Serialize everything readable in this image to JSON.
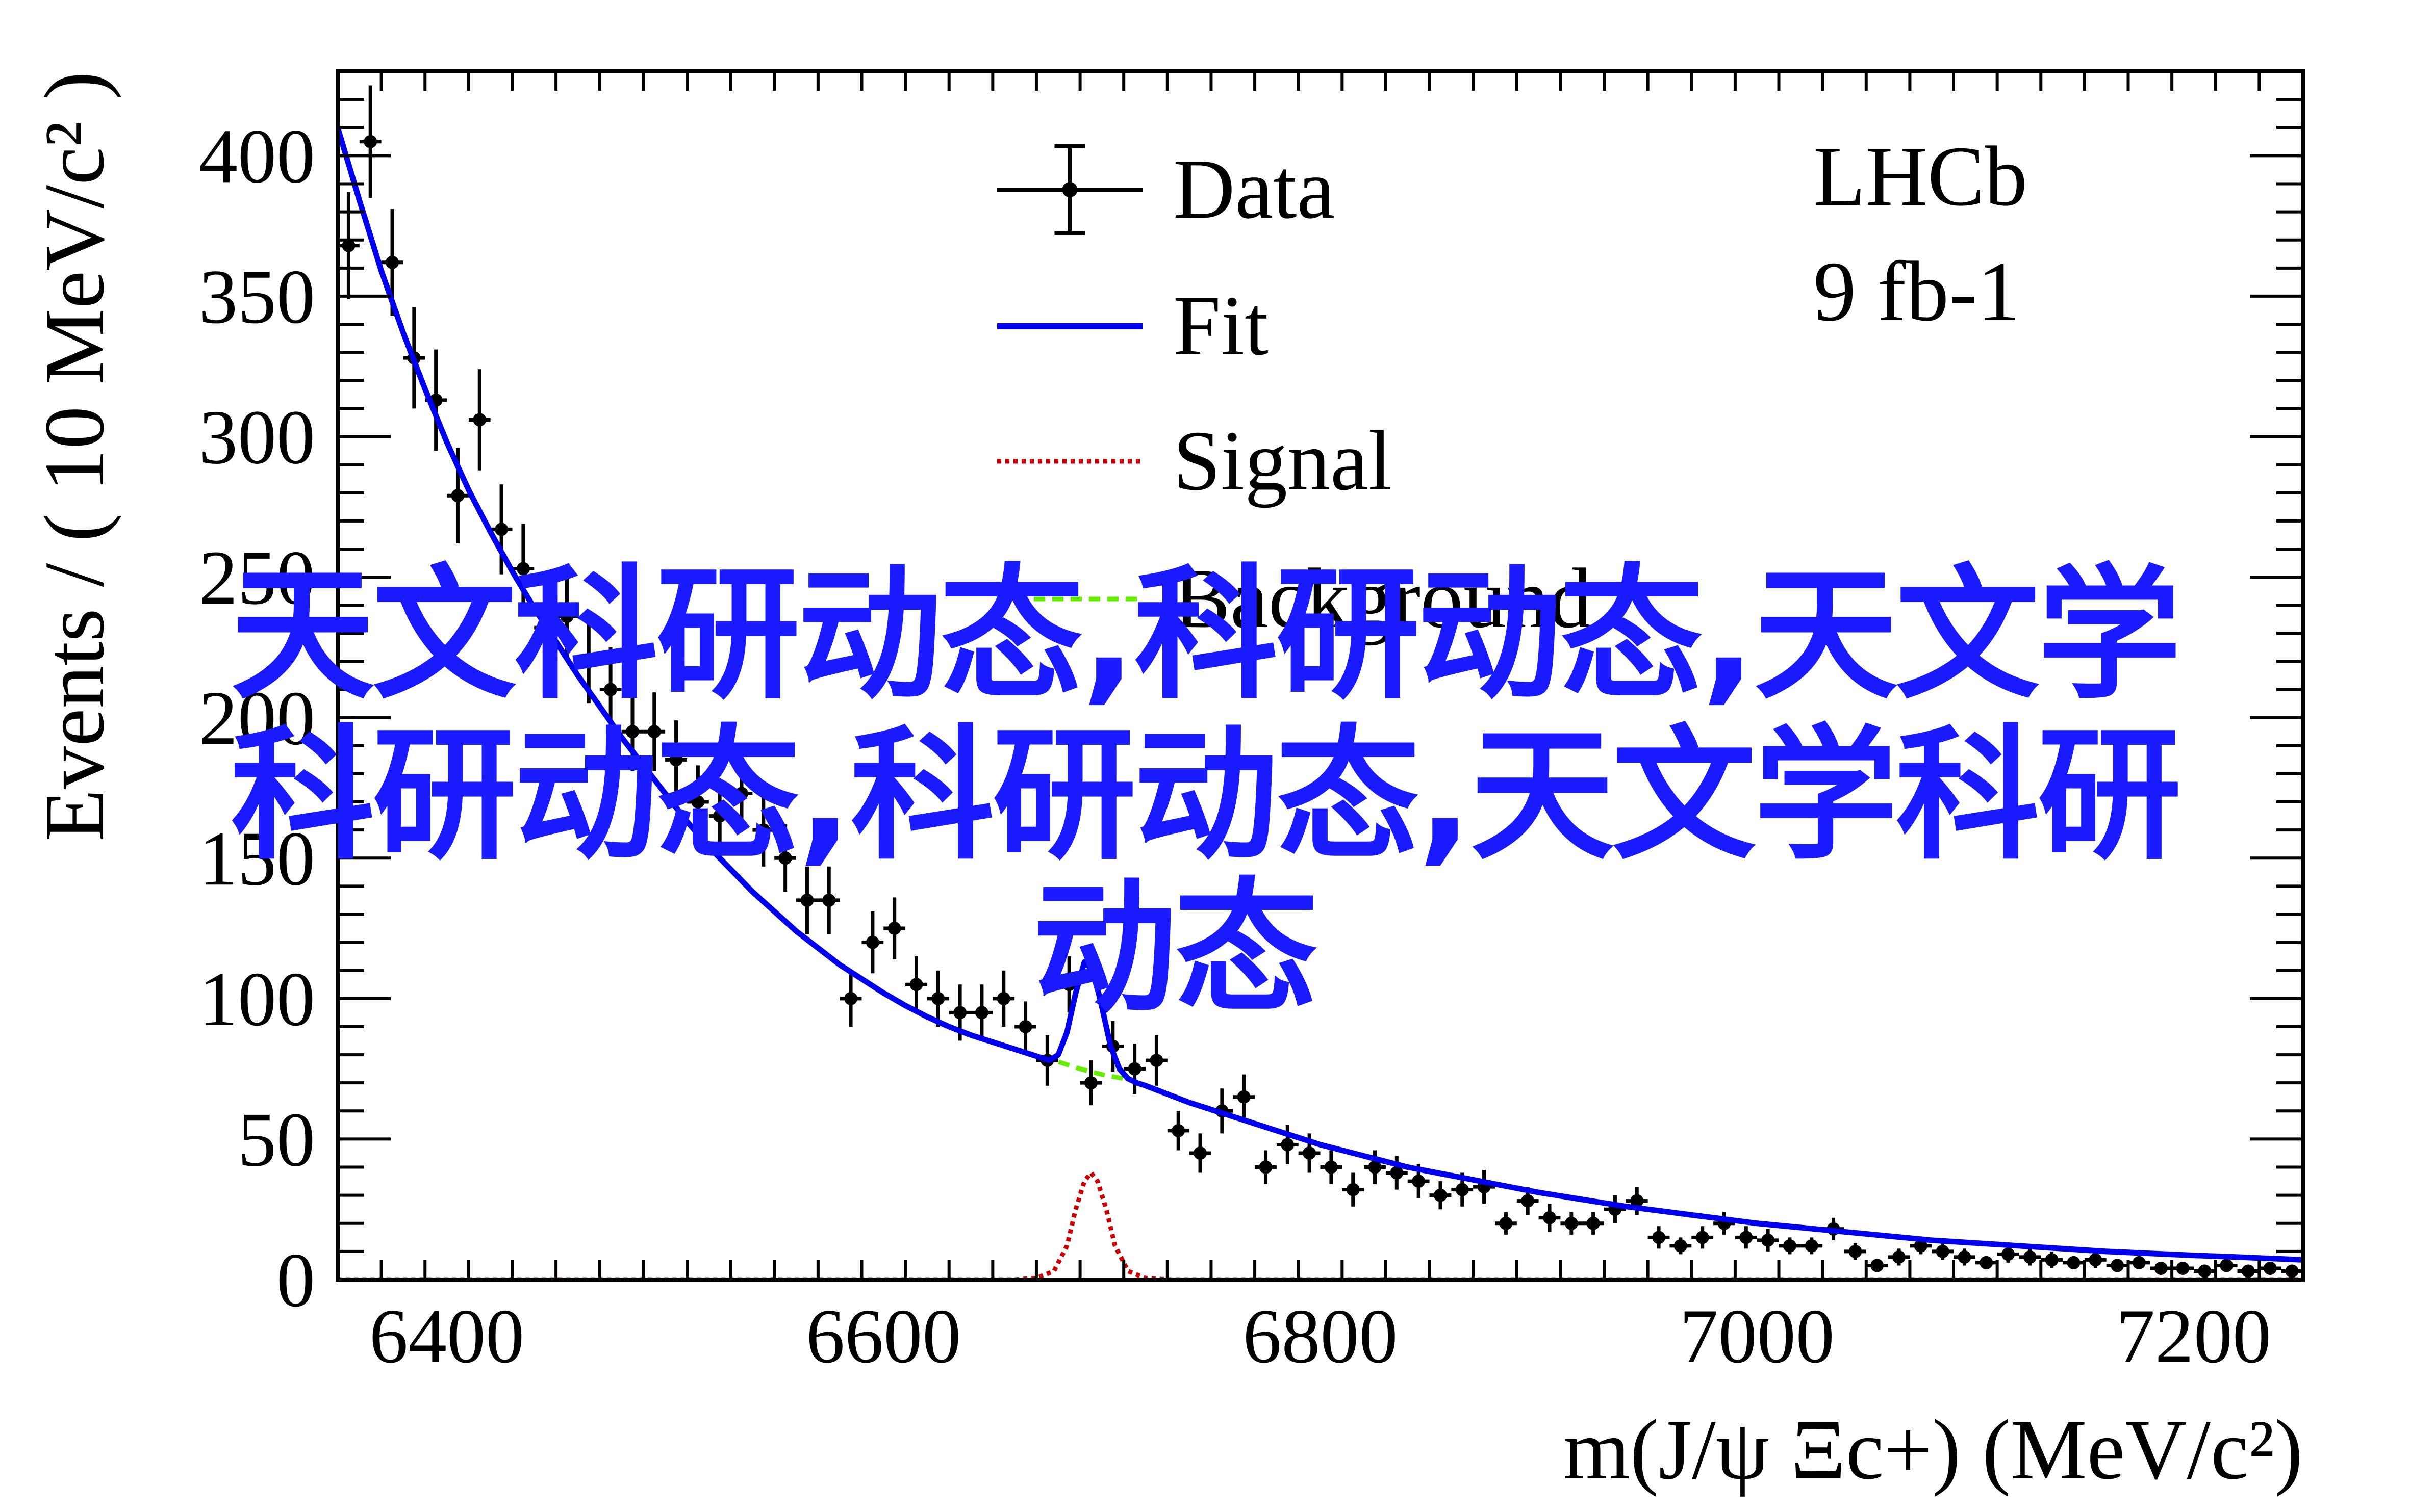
{
  "chart_data": {
    "type": "scatter",
    "xlim": [
      6350,
      7250
    ],
    "ylim": [
      0,
      430
    ],
    "xticks": [
      6400,
      6600,
      6800,
      7000,
      7200
    ],
    "yticks": [
      0,
      50,
      100,
      150,
      200,
      250,
      300,
      350,
      400
    ],
    "xlabel": "m(J/ψ Ξc+) (MeV/c²)",
    "ylabel": "Events / ( 10 MeV/c² )",
    "experiment": "LHCb",
    "luminosity": "9 fb-1",
    "legend": {
      "position": "top-center",
      "entries": [
        {
          "label": "Data",
          "style": "points",
          "color": "#000000"
        },
        {
          "label": "Fit",
          "style": "solid",
          "color": "#0000ee"
        },
        {
          "label": "Signal",
          "style": "dotted",
          "color": "#cc0000"
        },
        {
          "label": "Background",
          "style": "dashed",
          "color": "#66ee00"
        }
      ]
    },
    "series": [
      {
        "name": "Data",
        "x": [
          6355,
          6365,
          6375,
          6385,
          6395,
          6405,
          6415,
          6425,
          6435,
          6445,
          6455,
          6465,
          6475,
          6485,
          6495,
          6505,
          6515,
          6525,
          6535,
          6545,
          6555,
          6565,
          6575,
          6585,
          6595,
          6605,
          6615,
          6625,
          6635,
          6645,
          6655,
          6665,
          6675,
          6685,
          6695,
          6705,
          6715,
          6725,
          6735,
          6745,
          6755,
          6765,
          6775,
          6785,
          6795,
          6805,
          6815,
          6825,
          6835,
          6845,
          6855,
          6865,
          6875,
          6885,
          6895,
          6905,
          6915,
          6925,
          6935,
          6945,
          6955,
          6965,
          6975,
          6985,
          6995,
          7005,
          7015,
          7025,
          7035,
          7045,
          7055,
          7065,
          7075,
          7085,
          7095,
          7105,
          7115,
          7125,
          7135,
          7145,
          7155,
          7165,
          7175,
          7185,
          7195,
          7205,
          7215,
          7225,
          7235,
          7245
        ],
        "y": [
          368,
          405,
          362,
          328,
          313,
          279,
          306,
          267,
          253,
          232,
          236,
          220,
          210,
          195,
          195,
          185,
          170,
          165,
          173,
          160,
          150,
          135,
          135,
          100,
          120,
          125,
          105,
          100,
          95,
          95,
          100,
          90,
          78,
          105,
          70,
          83,
          75,
          78,
          53,
          45,
          60,
          65,
          40,
          48,
          45,
          40,
          32,
          40,
          38,
          35,
          30,
          32,
          33,
          20,
          28,
          22,
          20,
          20,
          25,
          28,
          15,
          12,
          15,
          20,
          15,
          14,
          12,
          12,
          18,
          10,
          5,
          8,
          12,
          10,
          8,
          6,
          9,
          8,
          7,
          6,
          7,
          5,
          6,
          4,
          4,
          3,
          5,
          3,
          4,
          3
        ],
        "yerr": [
          19,
          20,
          19,
          18,
          18,
          17,
          18,
          16,
          16,
          15,
          15,
          15,
          15,
          14,
          14,
          14,
          13,
          13,
          13,
          13,
          12,
          12,
          12,
          10,
          11,
          11,
          10,
          10,
          10,
          10,
          10,
          9,
          9,
          10,
          8,
          9,
          9,
          9,
          7,
          7,
          8,
          8,
          6,
          7,
          7,
          6,
          6,
          6,
          6,
          6,
          5,
          6,
          6,
          4,
          5,
          5,
          4,
          4,
          5,
          5,
          4,
          3,
          4,
          4,
          4,
          4,
          3,
          3,
          4,
          3,
          2,
          3,
          3,
          3,
          3,
          2,
          3,
          3,
          3,
          2,
          3,
          2,
          2,
          2,
          2,
          2,
          2,
          2,
          2,
          2
        ]
      },
      {
        "name": "Fit",
        "x": [
          6350,
          6360,
          6370,
          6380,
          6390,
          6400,
          6410,
          6420,
          6430,
          6440,
          6450,
          6460,
          6470,
          6480,
          6490,
          6500,
          6510,
          6520,
          6530,
          6540,
          6550,
          6560,
          6570,
          6580,
          6590,
          6600,
          6610,
          6620,
          6630,
          6640,
          6650,
          6660,
          6670,
          6676,
          6680,
          6684,
          6688,
          6692,
          6696,
          6700,
          6704,
          6708,
          6712,
          6716,
          6720,
          6730,
          6740,
          6750,
          6760,
          6770,
          6780,
          6790,
          6800,
          6810,
          6820,
          6830,
          6840,
          6850,
          6860,
          6870,
          6880,
          6890,
          6900,
          6920,
          6940,
          6960,
          6980,
          7000,
          7020,
          7040,
          7060,
          7080,
          7100,
          7120,
          7140,
          7160,
          7180,
          7200,
          7220,
          7250
        ],
        "y": [
          410,
          384,
          359,
          337,
          317,
          298,
          281,
          266,
          252,
          239,
          227,
          215,
          204,
          193,
          183,
          173,
          163,
          154,
          146,
          138,
          131,
          124,
          118,
          112,
          107,
          102,
          97.5,
          93.5,
          90,
          87,
          84.5,
          82,
          79.5,
          78,
          80,
          88,
          102,
          113,
          110,
          97,
          83,
          75,
          71.5,
          70,
          69,
          66,
          63,
          60.5,
          58,
          55.5,
          53,
          50.5,
          48,
          46,
          44,
          42,
          40,
          38.5,
          37,
          35.5,
          34,
          32.5,
          31,
          28.5,
          26,
          24,
          22,
          20,
          18.5,
          17,
          15.5,
          14,
          13,
          12,
          11,
          10,
          9.3,
          8.6,
          8,
          7
        ]
      },
      {
        "name": "Signal",
        "x": [
          6350,
          6660,
          6670,
          6678,
          6684,
          6688,
          6692,
          6695,
          6698,
          6702,
          6706,
          6712,
          6720,
          6730,
          7250
        ],
        "y": [
          0,
          0,
          0.5,
          3,
          12,
          25,
          35,
          38,
          35,
          25,
          12,
          3,
          0.5,
          0,
          0
        ]
      },
      {
        "name": "Background",
        "x": [
          6640,
          6650,
          6660,
          6670,
          6680,
          6690,
          6700,
          6710
        ],
        "y": [
          87,
          84.5,
          82,
          79.5,
          77.5,
          75,
          73,
          71.5
        ]
      }
    ]
  },
  "overlay": {
    "color": "#1a1aff",
    "lines": [
      "天文科研动态,科研动态,天文学",
      "科研动态,科研动态,天文学科研",
      "动态"
    ]
  }
}
